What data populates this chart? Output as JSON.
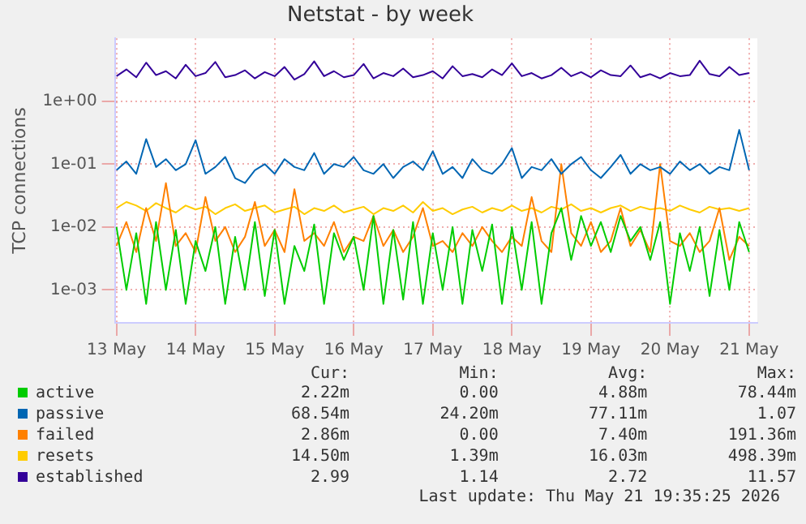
{
  "chart_data": {
    "type": "line",
    "title": "Netstat - by week",
    "ylabel": "TCP connections",
    "log": "y",
    "grid": true,
    "legend": "bottom",
    "marker": "none",
    "line_style": "solid",
    "x": [
      "2026-05-13T00:00",
      "2026-05-13T03:00",
      "2026-05-13T06:00",
      "2026-05-13T09:00",
      "2026-05-13T12:00",
      "2026-05-13T15:00",
      "2026-05-13T18:00",
      "2026-05-13T21:00",
      "2026-05-14T00:00",
      "2026-05-14T03:00",
      "2026-05-14T06:00",
      "2026-05-14T09:00",
      "2026-05-14T12:00",
      "2026-05-14T15:00",
      "2026-05-14T18:00",
      "2026-05-14T21:00",
      "2026-05-15T00:00",
      "2026-05-15T03:00",
      "2026-05-15T06:00",
      "2026-05-15T09:00",
      "2026-05-15T12:00",
      "2026-05-15T15:00",
      "2026-05-15T18:00",
      "2026-05-15T21:00",
      "2026-05-16T00:00",
      "2026-05-16T03:00",
      "2026-05-16T06:00",
      "2026-05-16T09:00",
      "2026-05-16T12:00",
      "2026-05-16T15:00",
      "2026-05-16T18:00",
      "2026-05-16T21:00",
      "2026-05-17T00:00",
      "2026-05-17T03:00",
      "2026-05-17T06:00",
      "2026-05-17T09:00",
      "2026-05-17T12:00",
      "2026-05-17T15:00",
      "2026-05-17T18:00",
      "2026-05-17T21:00",
      "2026-05-18T00:00",
      "2026-05-18T03:00",
      "2026-05-18T06:00",
      "2026-05-18T09:00",
      "2026-05-18T12:00",
      "2026-05-18T15:00",
      "2026-05-18T18:00",
      "2026-05-18T21:00",
      "2026-05-19T00:00",
      "2026-05-19T03:00",
      "2026-05-19T06:00",
      "2026-05-19T09:00",
      "2026-05-19T12:00",
      "2026-05-19T15:00",
      "2026-05-19T18:00",
      "2026-05-19T21:00",
      "2026-05-20T00:00",
      "2026-05-20T03:00",
      "2026-05-20T06:00",
      "2026-05-20T09:00",
      "2026-05-20T12:00",
      "2026-05-20T15:00",
      "2026-05-20T18:00",
      "2026-05-20T21:00",
      "2026-05-21T00:00"
    ],
    "xlim": [
      "2026-05-12T23:30",
      "2026-05-21T02:30"
    ],
    "xticks": [
      {
        "value": "2026-05-13",
        "label": "13 May"
      },
      {
        "value": "2026-05-14",
        "label": "14 May"
      },
      {
        "value": "2026-05-15",
        "label": "15 May"
      },
      {
        "value": "2026-05-16",
        "label": "16 May"
      },
      {
        "value": "2026-05-17",
        "label": "17 May"
      },
      {
        "value": "2026-05-18",
        "label": "18 May"
      },
      {
        "value": "2026-05-19",
        "label": "19 May"
      },
      {
        "value": "2026-05-20",
        "label": "20 May"
      },
      {
        "value": "2026-05-21",
        "label": "21 May"
      }
    ],
    "ylim": [
      0.0003,
      10
    ],
    "yticks": [
      {
        "value": 0.001,
        "label": "1e-03"
      },
      {
        "value": 0.01,
        "label": "1e-02"
      },
      {
        "value": 0.1,
        "label": "1e-01"
      },
      {
        "value": 1,
        "label": "1e+00"
      }
    ],
    "series": [
      {
        "name": "active",
        "color": "#00cc00",
        "values": [
          0.01,
          0.001,
          0.008,
          0.0006,
          0.012,
          0.001,
          0.009,
          0.0006,
          0.006,
          0.002,
          0.01,
          0.0006,
          0.007,
          0.001,
          0.012,
          0.0008,
          0.009,
          0.0006,
          0.005,
          0.002,
          0.011,
          0.0006,
          0.008,
          0.003,
          0.007,
          0.001,
          0.015,
          0.0006,
          0.009,
          0.0007,
          0.012,
          0.0006,
          0.008,
          0.001,
          0.01,
          0.0006,
          0.009,
          0.002,
          0.011,
          0.0006,
          0.01,
          0.001,
          0.012,
          0.0006,
          0.008,
          0.02,
          0.003,
          0.015,
          0.005,
          0.012,
          0.004,
          0.015,
          0.006,
          0.01,
          0.003,
          0.012,
          0.0006,
          0.008,
          0.002,
          0.01,
          0.0008,
          0.009,
          0.001,
          0.012,
          0.004
        ]
      },
      {
        "name": "passive",
        "color": "#0066b3",
        "values": [
          0.08,
          0.11,
          0.07,
          0.25,
          0.09,
          0.12,
          0.08,
          0.1,
          0.24,
          0.07,
          0.09,
          0.13,
          0.06,
          0.05,
          0.08,
          0.1,
          0.07,
          0.12,
          0.09,
          0.08,
          0.15,
          0.07,
          0.1,
          0.09,
          0.13,
          0.08,
          0.07,
          0.1,
          0.06,
          0.09,
          0.11,
          0.08,
          0.16,
          0.07,
          0.09,
          0.06,
          0.12,
          0.08,
          0.07,
          0.1,
          0.18,
          0.06,
          0.09,
          0.08,
          0.12,
          0.07,
          0.1,
          0.13,
          0.08,
          0.06,
          0.09,
          0.14,
          0.07,
          0.1,
          0.08,
          0.09,
          0.07,
          0.11,
          0.08,
          0.1,
          0.07,
          0.09,
          0.08,
          0.35,
          0.08
        ]
      },
      {
        "name": "failed",
        "color": "#ff8000",
        "values": [
          0.005,
          0.012,
          0.004,
          0.02,
          0.006,
          0.05,
          0.005,
          0.008,
          0.004,
          0.03,
          0.006,
          0.01,
          0.004,
          0.007,
          0.025,
          0.005,
          0.009,
          0.004,
          0.04,
          0.006,
          0.008,
          0.005,
          0.012,
          0.004,
          0.007,
          0.006,
          0.015,
          0.005,
          0.009,
          0.004,
          0.007,
          0.02,
          0.005,
          0.006,
          0.004,
          0.008,
          0.005,
          0.01,
          0.006,
          0.004,
          0.007,
          0.005,
          0.03,
          0.006,
          0.004,
          0.1,
          0.008,
          0.005,
          0.012,
          0.004,
          0.006,
          0.02,
          0.005,
          0.009,
          0.004,
          0.1,
          0.006,
          0.005,
          0.008,
          0.004,
          0.006,
          0.02,
          0.003,
          0.007,
          0.005
        ]
      },
      {
        "name": "resets",
        "color": "#ffcc00",
        "values": [
          0.02,
          0.025,
          0.022,
          0.018,
          0.024,
          0.02,
          0.017,
          0.022,
          0.019,
          0.021,
          0.016,
          0.02,
          0.023,
          0.018,
          0.02,
          0.022,
          0.017,
          0.019,
          0.021,
          0.016,
          0.02,
          0.018,
          0.022,
          0.017,
          0.019,
          0.021,
          0.016,
          0.02,
          0.018,
          0.022,
          0.017,
          0.025,
          0.018,
          0.02,
          0.016,
          0.019,
          0.021,
          0.017,
          0.02,
          0.018,
          0.022,
          0.018,
          0.02,
          0.017,
          0.021,
          0.019,
          0.023,
          0.018,
          0.02,
          0.017,
          0.02,
          0.022,
          0.018,
          0.021,
          0.019,
          0.02,
          0.018,
          0.022,
          0.019,
          0.017,
          0.021,
          0.019,
          0.02,
          0.018,
          0.02
        ]
      },
      {
        "name": "established",
        "color": "#330099",
        "values": [
          2.5,
          3.2,
          2.4,
          4.1,
          2.6,
          3.0,
          2.3,
          3.8,
          2.5,
          2.8,
          4.2,
          2.4,
          2.6,
          3.1,
          2.3,
          2.9,
          2.5,
          3.5,
          2.2,
          2.7,
          4.3,
          2.5,
          3.0,
          2.4,
          2.6,
          3.9,
          2.3,
          2.8,
          2.5,
          3.3,
          2.4,
          2.6,
          3.0,
          2.3,
          3.6,
          2.5,
          2.7,
          2.4,
          3.2,
          2.6,
          4.0,
          2.5,
          2.8,
          2.3,
          2.6,
          3.4,
          2.5,
          2.9,
          2.4,
          3.1,
          2.6,
          2.5,
          3.7,
          2.4,
          2.7,
          2.3,
          2.8,
          2.5,
          2.6,
          4.4,
          2.7,
          2.5,
          3.5,
          2.6,
          2.8
        ]
      }
    ],
    "annotations": [
      "Cur:",
      "Min:",
      "Avg:",
      "Max:",
      "2.22m",
      "0.00",
      "4.88m",
      "78.44m",
      "68.54m",
      "24.20m",
      "77.11m",
      "1.07",
      "2.86m",
      "0.00",
      "7.40m",
      "191.36m",
      "14.50m",
      "1.39m",
      "16.03m",
      "498.39m",
      "2.99",
      "1.14",
      "2.72",
      "11.57",
      "Last update: Thu May 21 19:35:25 2026"
    ]
  }
}
